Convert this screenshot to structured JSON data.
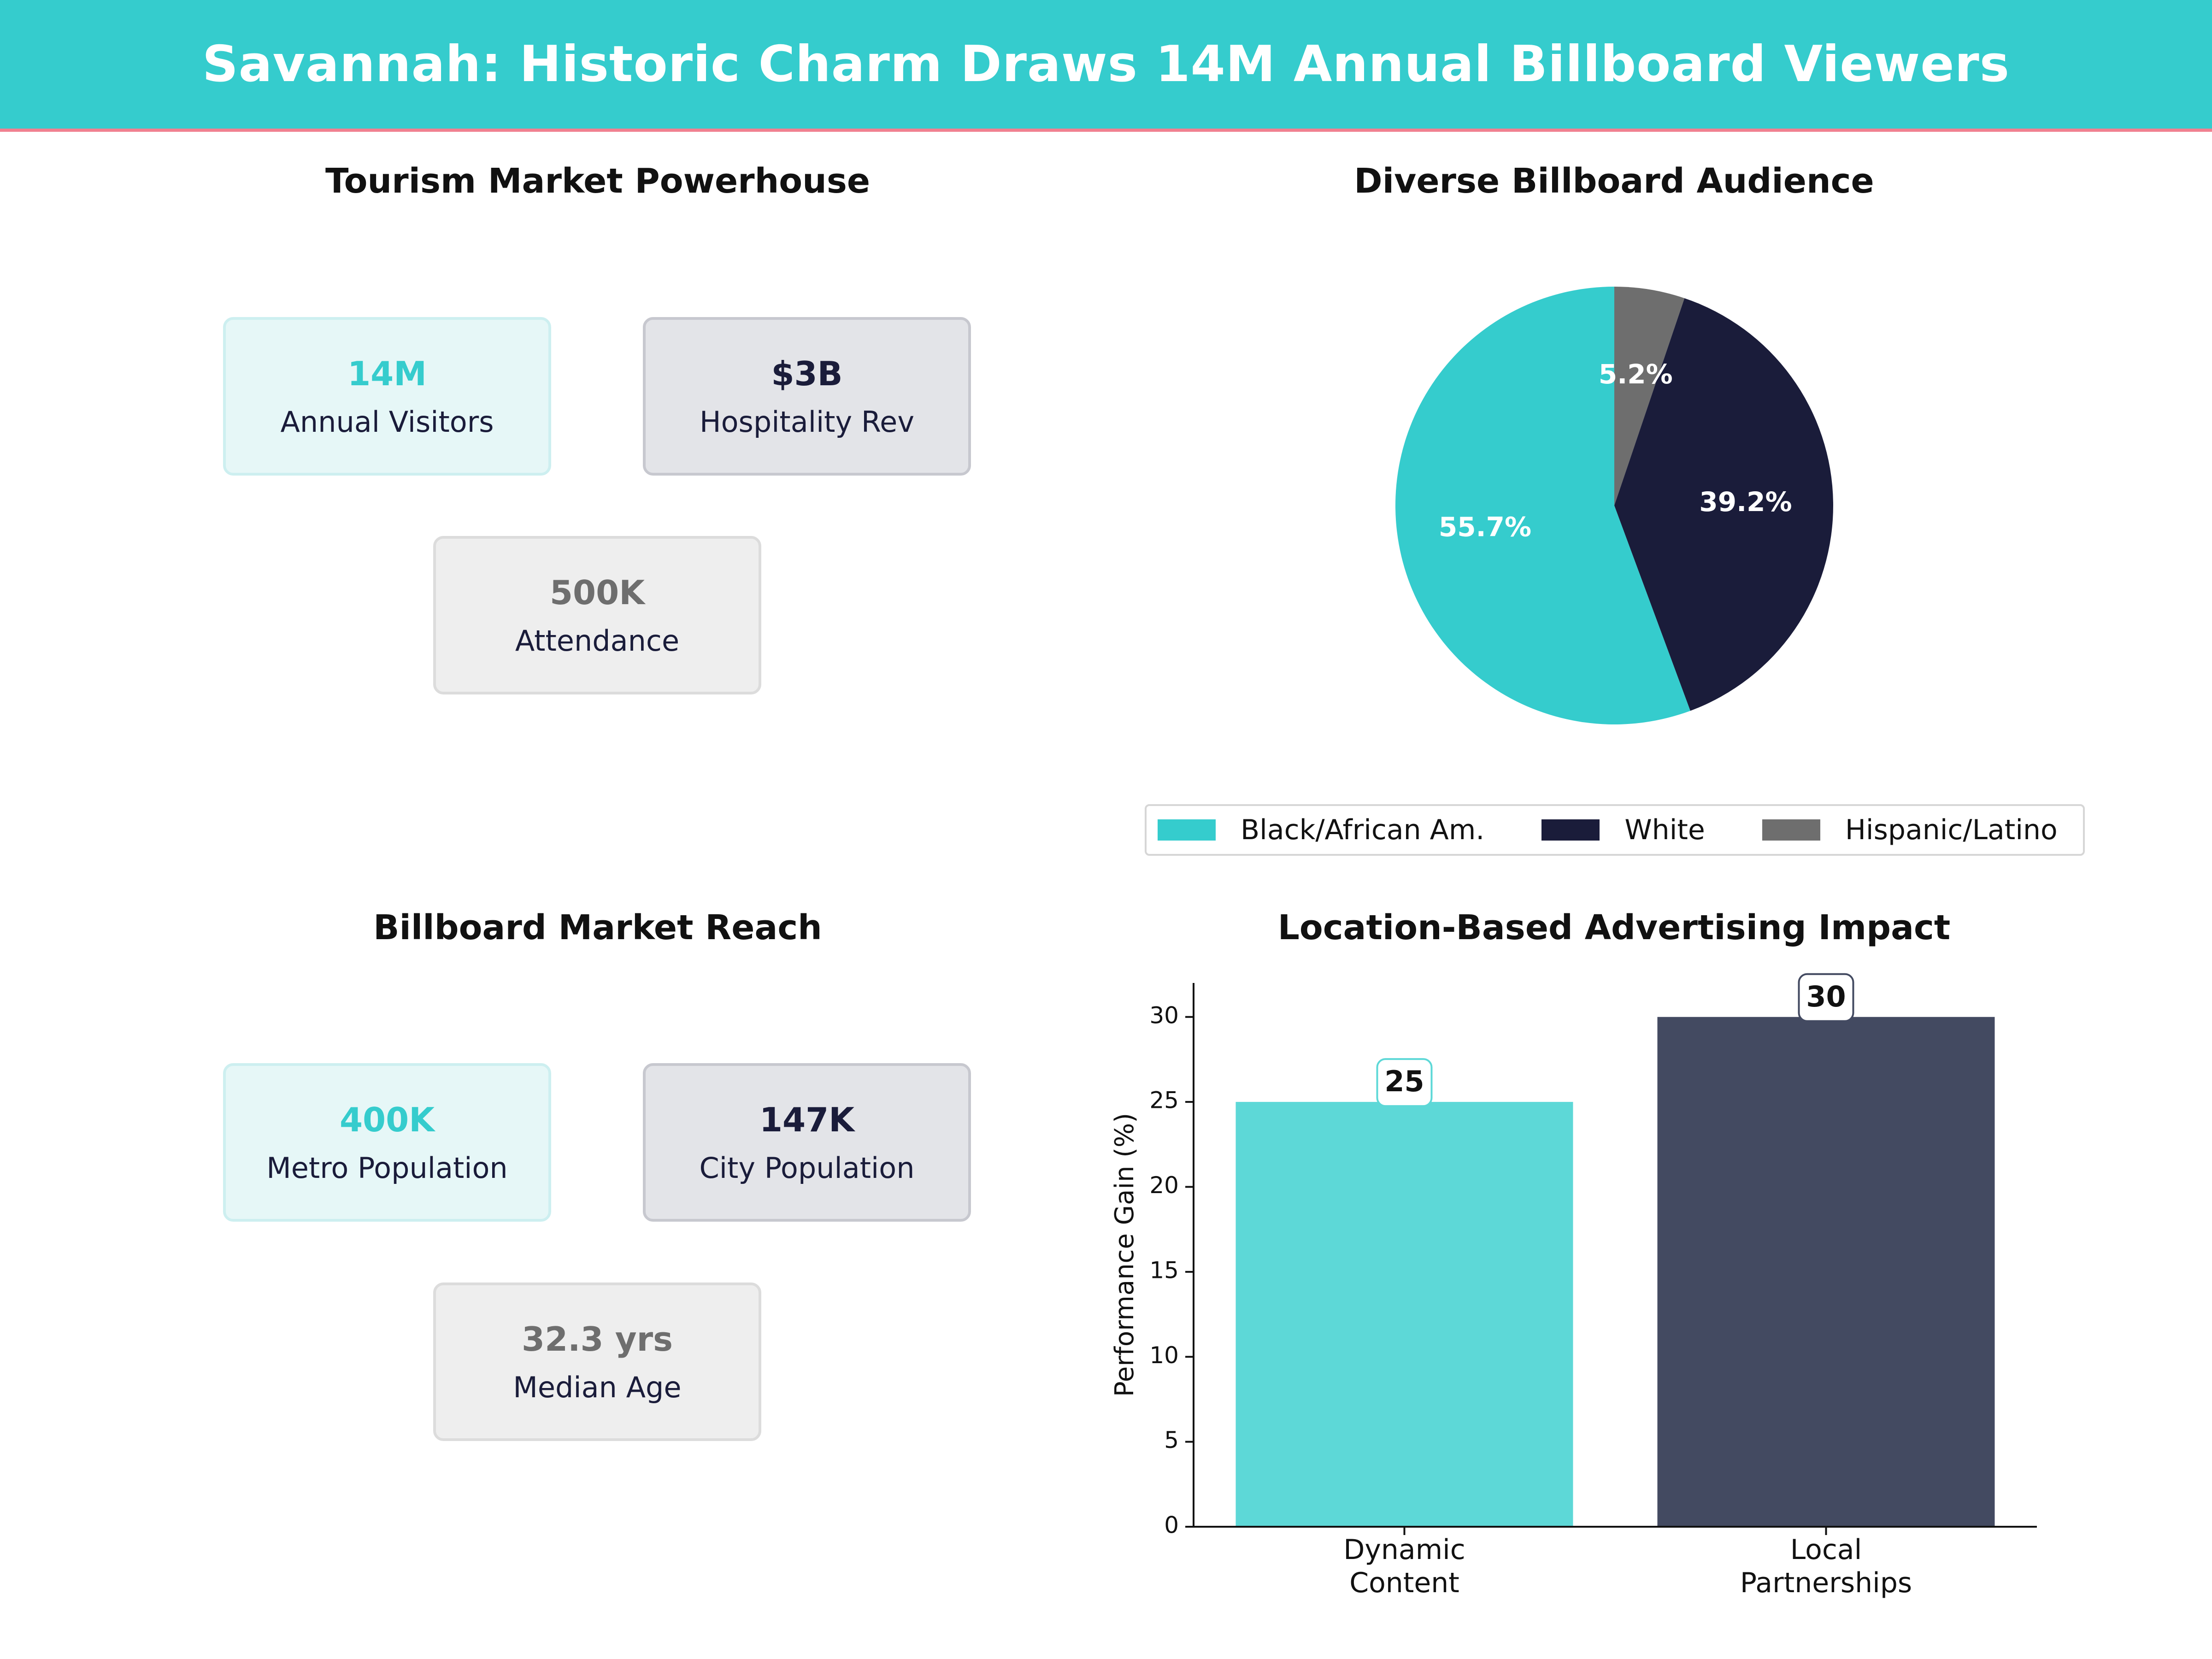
{
  "header": {
    "title": "Savannah: Historic Charm Draws 14M Annual Billboard Viewers"
  },
  "colors": {
    "teal": "#35cccd",
    "navy": "#1a1c3a",
    "grey": "#6e6e6e",
    "accent_line": "#f08090"
  },
  "tourism": {
    "title": "Tourism Market Powerhouse",
    "cards": [
      {
        "value": "14M",
        "label": "Annual Visitors"
      },
      {
        "value": "$3B",
        "label": "Hospitality Rev"
      },
      {
        "value": "500K",
        "label": "Attendance"
      }
    ]
  },
  "reach": {
    "title": "Billboard Market Reach",
    "cards": [
      {
        "value": "400K",
        "label": "Metro Population"
      },
      {
        "value": "147K",
        "label": "City Population"
      },
      {
        "value": "32.3 yrs",
        "label": "Median Age"
      }
    ]
  },
  "chart_data": [
    {
      "type": "pie",
      "title": "Diverse Billboard Audience",
      "labels": [
        "Black/African Am.",
        "White",
        "Hispanic/Latino"
      ],
      "values": [
        55.7,
        39.2,
        5.2
      ],
      "value_labels": [
        "55.7%",
        "39.2%",
        "5.2%"
      ],
      "colors": [
        "#35cccd",
        "#1a1c3a",
        "#6e6e6e"
      ],
      "legend_position": "bottom"
    },
    {
      "type": "bar",
      "title": "Location-Based Advertising Impact",
      "categories": [
        "Dynamic\nContent",
        "Local\nPartnerships"
      ],
      "values": [
        25,
        30
      ],
      "value_labels": [
        "25",
        "30"
      ],
      "ylabel": "Performance Gain (%)",
      "xlabel": "",
      "ylim": [
        0,
        32
      ],
      "yticks": [
        "0",
        "5",
        "10",
        "15",
        "20",
        "25",
        "30"
      ],
      "colors": [
        "#5dd8d7",
        "#434a61"
      ],
      "grid": false
    }
  ]
}
